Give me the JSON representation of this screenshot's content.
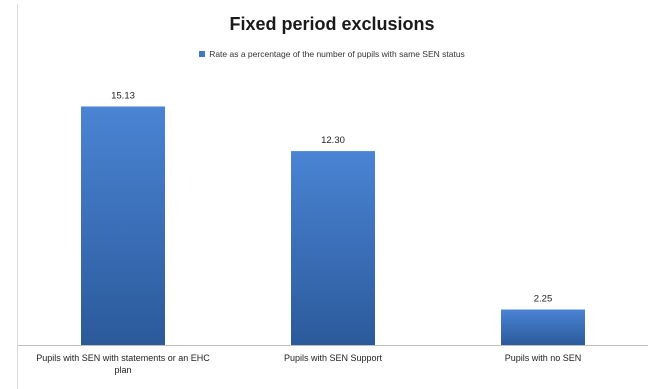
{
  "chart_data": {
    "type": "bar",
    "title": "Fixed period exclusions",
    "categories": [
      "Pupils with SEN with statements or an EHC plan",
      "Pupils with SEN Support",
      "Pupils with no SEN"
    ],
    "category_lines": [
      [
        "Pupils with SEN with statements or an EHC",
        "plan"
      ],
      [
        "Pupils with SEN Support"
      ],
      [
        "Pupils with no SEN"
      ]
    ],
    "series": [
      {
        "name": "Rate as a percentage of the number of pupils with same SEN status",
        "values": [
          15.13,
          12.3,
          2.25
        ],
        "value_labels": [
          "15.13",
          "12.30",
          "2.25"
        ]
      }
    ],
    "xlabel": "",
    "ylabel": "",
    "ylim": [
      0,
      17
    ],
    "grid": false,
    "legend_position": "top",
    "colors": {
      "bar_top": "#4a84d4",
      "bar_bottom": "#2b5a9b",
      "legend": "#3e78c6",
      "axis": "#bfbfbf"
    }
  }
}
